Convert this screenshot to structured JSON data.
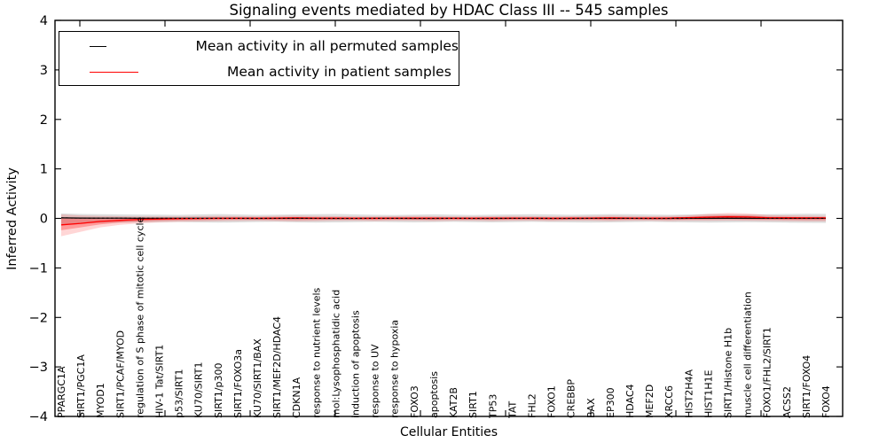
{
  "page": {
    "background": "#ffffff"
  },
  "chart_data": {
    "type": "line",
    "title": "Signaling events mediated by HDAC Class III -- 545 samples",
    "xlabel": "Cellular Entities",
    "ylabel": "Inferred Activity",
    "ylim": [
      -4,
      4
    ],
    "yticks": [
      4,
      3,
      2,
      1,
      0,
      -1,
      -2,
      -3,
      -4
    ],
    "grid": false,
    "legend_position": "upper left",
    "accent_colors": {
      "permuted": "#000000",
      "patient": "#ff0000"
    },
    "categories": [
      "PPARGC1A",
      "SIRT1/PGC1A",
      "MYOD1",
      "SIRT1/PCAF/MYOD",
      "regulation of S phase of mitotic cell cycle",
      "HIV-1 Tat/SIRT1",
      "p53/SIRT1",
      "KU70/SIRT1",
      "SIRT1/p300",
      "SIRT1/FOXO3a",
      "KU70/SIRT1/BAX",
      "SIRT1/MEF2D/HDAC4",
      "CDKN1A",
      "response to nutrient levels",
      "mol:Lysophosphatidic acid",
      "induction of apoptosis",
      "response to UV",
      "response to hypoxia",
      "FOXO3",
      "apoptosis",
      "KAT2B",
      "SIRT1",
      "TP53",
      "TAT",
      "FHL2",
      "FOXO1",
      "CREBBP",
      "BAX",
      "EP300",
      "HDAC4",
      "MEF2D",
      "XRCC6",
      "HIST2H4A",
      "HIST1H1E",
      "SIRT1/Histone H1b",
      "muscle cell differentiation",
      "FOXO1/FHL2/SIRT1",
      "ACSS2",
      "SIRT1/FOXO4",
      "FOXO4"
    ],
    "series": [
      {
        "name": "Mean activity in all permuted samples",
        "color": "#000000",
        "style": "solid-with-dash-overlay",
        "values": [
          0.01,
          0.008,
          0.006,
          0.005,
          0.004,
          0.003,
          0.002,
          0.002,
          0.001,
          0.001,
          0.0,
          0.001,
          0.002,
          0.001,
          0.0,
          0.0,
          0.001,
          0.001,
          0.0,
          0.0,
          0.001,
          0.0,
          0.0,
          0.001,
          0.001,
          0.0,
          0.0,
          0.001,
          0.002,
          0.001,
          0.0,
          0.0,
          0.001,
          0.002,
          0.002,
          0.001,
          0.001,
          0.002,
          0.002,
          0.002
        ]
      },
      {
        "name": "Mean activity in patient samples",
        "color": "#ff0000",
        "style": "solid",
        "values": [
          -0.13,
          -0.1,
          -0.06,
          -0.04,
          -0.02,
          -0.012,
          -0.006,
          -0.002,
          0.002,
          0.003,
          0.004,
          0.008,
          0.01,
          0.008,
          0.005,
          0.003,
          0.004,
          0.006,
          0.008,
          0.005,
          0.003,
          0.004,
          0.006,
          0.008,
          0.006,
          0.004,
          0.005,
          0.008,
          0.01,
          0.008,
          0.005,
          0.008,
          0.015,
          0.025,
          0.032,
          0.028,
          0.015,
          0.012,
          0.01,
          0.01
        ]
      }
    ],
    "bands": [
      {
        "name": "permuted-spread",
        "color": "rgba(0,0,0,0.13)",
        "upper": [
          0.1,
          0.09,
          0.085,
          0.08,
          0.078,
          0.075,
          0.072,
          0.08,
          0.088,
          0.08,
          0.072,
          0.076,
          0.082,
          0.086,
          0.09,
          0.08,
          0.074,
          0.07,
          0.076,
          0.082,
          0.076,
          0.07,
          0.076,
          0.08,
          0.086,
          0.08,
          0.074,
          0.08,
          0.088,
          0.084,
          0.078,
          0.074,
          0.08,
          0.09,
          0.086,
          0.08,
          0.084,
          0.09,
          0.094,
          0.092
        ],
        "lower": [
          -0.12,
          -0.1,
          -0.092,
          -0.086,
          -0.08,
          -0.076,
          -0.072,
          -0.08,
          -0.086,
          -0.08,
          -0.074,
          -0.07,
          -0.08,
          -0.086,
          -0.08,
          -0.076,
          -0.07,
          -0.076,
          -0.08,
          -0.076,
          -0.07,
          -0.076,
          -0.08,
          -0.076,
          -0.07,
          -0.076,
          -0.08,
          -0.086,
          -0.08,
          -0.076,
          -0.07,
          -0.076,
          -0.08,
          -0.086,
          -0.08,
          -0.076,
          -0.08,
          -0.086,
          -0.09,
          -0.092
        ]
      },
      {
        "name": "patient-spread-outer",
        "color": "rgba(255,0,0,0.16)",
        "upper": [
          0.08,
          0.06,
          0.05,
          0.045,
          0.042,
          0.04,
          0.04,
          0.044,
          0.05,
          0.045,
          0.04,
          0.05,
          0.056,
          0.05,
          0.044,
          0.04,
          0.04,
          0.045,
          0.05,
          0.045,
          0.04,
          0.04,
          0.045,
          0.05,
          0.045,
          0.04,
          0.044,
          0.05,
          0.055,
          0.05,
          0.044,
          0.05,
          0.06,
          0.09,
          0.11,
          0.1,
          0.07,
          0.06,
          0.055,
          0.05
        ],
        "lower": [
          -0.36,
          -0.27,
          -0.18,
          -0.13,
          -0.1,
          -0.08,
          -0.07,
          -0.062,
          -0.056,
          -0.052,
          -0.05,
          -0.055,
          -0.06,
          -0.055,
          -0.05,
          -0.05,
          -0.055,
          -0.05,
          -0.05,
          -0.055,
          -0.05,
          -0.05,
          -0.055,
          -0.05,
          -0.05,
          -0.055,
          -0.05,
          -0.05,
          -0.055,
          -0.05,
          -0.05,
          -0.055,
          -0.05,
          -0.048,
          -0.045,
          -0.05,
          -0.052,
          -0.056,
          -0.06,
          -0.06
        ]
      },
      {
        "name": "patient-spread-inner",
        "color": "rgba(255,0,0,0.28)",
        "upper": [
          0.02,
          0.015,
          0.012,
          0.01,
          0.01,
          0.01,
          0.012,
          0.015,
          0.02,
          0.015,
          0.012,
          0.02,
          0.025,
          0.02,
          0.015,
          0.012,
          0.012,
          0.015,
          0.02,
          0.015,
          0.012,
          0.012,
          0.015,
          0.02,
          0.015,
          0.012,
          0.015,
          0.02,
          0.022,
          0.02,
          0.015,
          0.02,
          0.03,
          0.05,
          0.06,
          0.055,
          0.035,
          0.03,
          0.025,
          0.025
        ],
        "lower": [
          -0.24,
          -0.18,
          -0.12,
          -0.08,
          -0.06,
          -0.045,
          -0.035,
          -0.03,
          -0.028,
          -0.025,
          -0.025,
          -0.028,
          -0.03,
          -0.028,
          -0.025,
          -0.025,
          -0.028,
          -0.025,
          -0.025,
          -0.028,
          -0.025,
          -0.025,
          -0.028,
          -0.025,
          -0.025,
          -0.028,
          -0.025,
          -0.025,
          -0.028,
          -0.025,
          -0.025,
          -0.028,
          -0.025,
          -0.02,
          -0.015,
          -0.02,
          -0.025,
          -0.028,
          -0.03,
          -0.03
        ]
      }
    ]
  }
}
